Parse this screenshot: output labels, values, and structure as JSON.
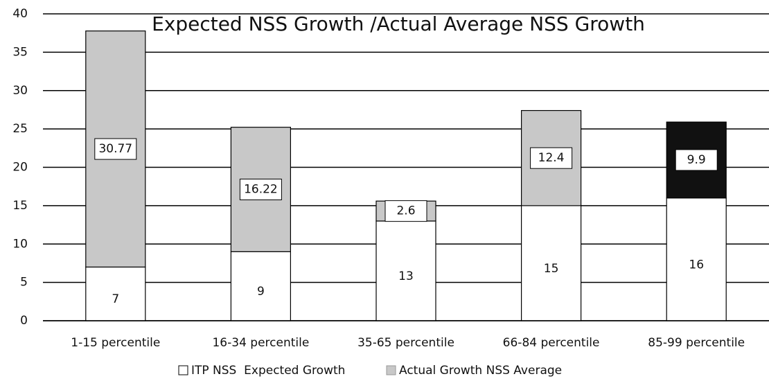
{
  "chart_data": {
    "type": "stacked_bar",
    "title": "Expected NSS Growth /Actual Average NSS Growth",
    "categories": [
      "1-15 percentile",
      "16-34 percentile",
      "35-65 percentile",
      "66-84 percentile",
      "85-99 percentile"
    ],
    "series": [
      {
        "name": "ITP NSS  Expected Growth",
        "color": "#ffffff",
        "values": [
          7,
          9,
          13,
          15,
          16
        ]
      },
      {
        "name": "Actual Growth NSS Average",
        "color": "#c8c8c8",
        "colors": [
          "#c8c8c8",
          "#c8c8c8",
          "#c8c8c8",
          "#c8c8c8",
          "#111111"
        ],
        "values": [
          30.77,
          16.22,
          2.6,
          12.4,
          9.9
        ]
      }
    ],
    "ylim": [
      0,
      40
    ],
    "yticks": [
      0,
      5,
      10,
      15,
      20,
      25,
      30,
      35,
      40
    ],
    "grid": true,
    "legend": "bottom"
  }
}
